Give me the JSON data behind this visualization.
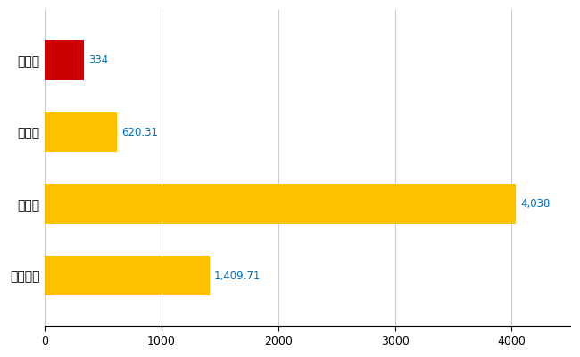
{
  "categories": [
    "庄内町",
    "県平均",
    "県最大",
    "全国平均"
  ],
  "values": [
    334,
    620.31,
    4038,
    1409.71
  ],
  "bar_colors": [
    "#CC0000",
    "#FFC000",
    "#FFC000",
    "#FFC000"
  ],
  "value_labels": [
    "334",
    "620.31",
    "4,038",
    "1,409.71"
  ],
  "xlim": [
    0,
    4500
  ],
  "xticks": [
    0,
    1000,
    2000,
    3000,
    4000
  ],
  "background_color": "#FFFFFF",
  "grid_color": "#CCCCCC",
  "label_color": "#0070C0",
  "bar_height": 0.55,
  "figsize": [
    6.5,
    4.0
  ],
  "dpi": 100
}
